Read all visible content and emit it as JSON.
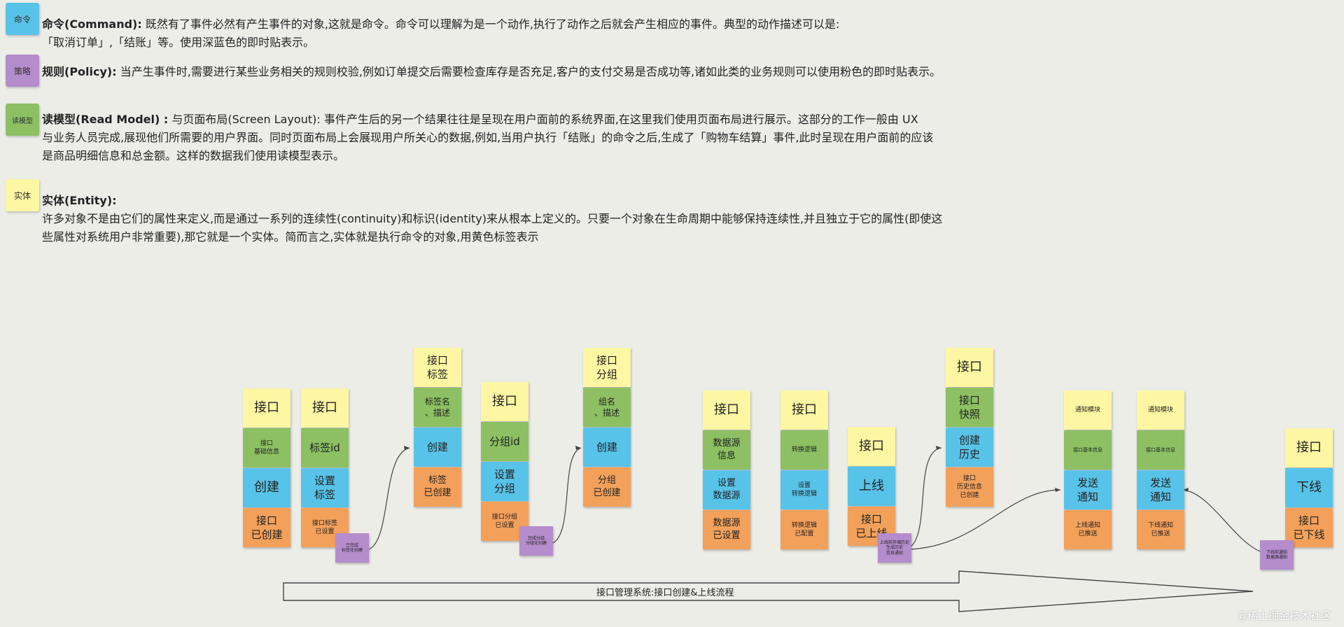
{
  "legend": {
    "command": {
      "tag": "命令",
      "title": "命令(Command):",
      "lines": [
        "既然有了事件必然有产生事件的对象,这就是命令。命令可以理解为是一个动作,执行了动作之后就会产生相应的事件。典型的动作描述可以是:",
        "「取消订单」,「结账」等。使用深蓝色的即时贴表示。"
      ]
    },
    "policy": {
      "tag": "策略",
      "title": "规则(Policy):",
      "lines": [
        "当产生事件时,需要进行某些业务相关的规则校验,例如订单提交后需要检查库存是否充足,客户的支付交易是否成功等,诸如此类的业务规则可以使用粉色的即时贴表示。"
      ]
    },
    "readmodel": {
      "tag": "读模型",
      "title": "读模型(Read Model) :",
      "lines": [
        "与页面布局(Screen Layout): 事件产生后的另一个结果往往是呈现在用户面前的系统界面,在这里我们使用页面布局进行展示。这部分的工作一般由 UX",
        "与业务人员完成,展现他们所需要的用户界面。同时页面布局上会展现用户所关心的数据,例如,当用户执行「结账」的命令之后,生成了「购物车结算」事件,此时呈现在用户面前的应该",
        "是商品明细信息和总金额。这样的数据我们使用读模型表示。"
      ]
    },
    "entity": {
      "tag": "实体",
      "title": "实体(Entity):",
      "lines": [
        "许多对象不是由它们的属性来定义,而是通过一系列的连续性(continuity)和标识(identity)来从根本上定义的。只要一个对象在生命周期中能够保持连续性,并且独立于它的属性(即使这",
        "些属性对系统用户非常重要),那它就是一个实体。简而言之,实体就是执行命令的对象,用黄色标签表示"
      ]
    }
  },
  "notes": {
    "c1": [
      "接口",
      "接口\n基础信息",
      "创建",
      "接口\n已创建"
    ],
    "c2": [
      "接口",
      "标签id",
      "设置\n标签",
      "接口标签\n已设置"
    ],
    "c3": [
      "接口\n标签",
      "标签名\n、描述",
      "创建",
      "标签\n已创建"
    ],
    "c4": [
      "接口",
      "分组id",
      "设置\n分组",
      "接口分组\n已设置"
    ],
    "c5": [
      "接口\n分组",
      "组名\n、描述",
      "创建",
      "分组\n已创建"
    ],
    "c6": [
      "接口",
      "数据源\n信息",
      "设置\n数据源",
      "数据源\n已设置"
    ],
    "c7": [
      "接口",
      "转换逻辑",
      "设置\n转换逻辑",
      "转换逻辑\n已配置"
    ],
    "c8": [
      "接口",
      "上线",
      "接口\n已上线"
    ],
    "c9": [
      "接口",
      "接口\n快照",
      "创建\n历史",
      "接口\n历史信息\n已创建"
    ],
    "c10": [
      "通知模块",
      "接口基本信息",
      "发送\n通知",
      "上线通知\n已推送"
    ],
    "c11": [
      "通知模块",
      "接口基本信息",
      "发送\n通知",
      "下线通知\n已推送"
    ],
    "c12": [
      "接口",
      "下线",
      "接口\n已下线"
    ],
    "p1": "已完成\n标签化创建",
    "p2": "完成分组\n分组化创建",
    "p3": "上线前存储历史\n生成历史\n信息通知",
    "p4": "下线前通知\n数据源通知"
  },
  "flow_label": "接口管理系统:接口创建&上线流程",
  "watermark": "@稀土掘金技术社区",
  "colors": {
    "yellow": "#fdf6a3",
    "green": "#8cc063",
    "blue": "#58c3e8",
    "orange": "#f3a05a",
    "purple": "#b58ccc"
  }
}
